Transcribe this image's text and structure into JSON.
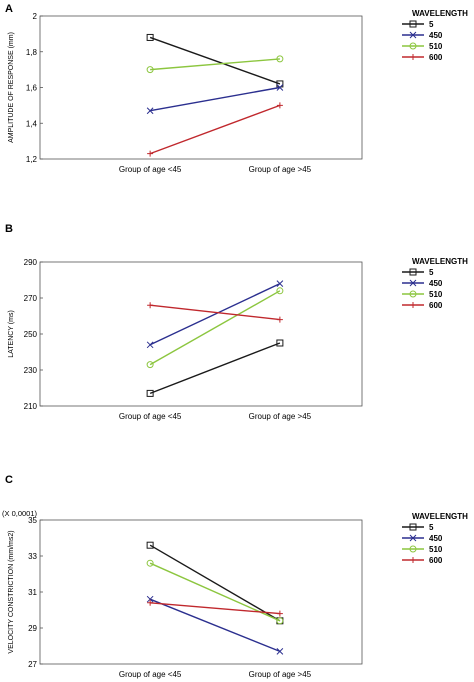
{
  "figure": {
    "panels": [
      "A",
      "B",
      "C"
    ]
  },
  "chart_data": [
    {
      "type": "line",
      "panel_label": "A",
      "xlabel": "",
      "ylabel": "AMPLITUDE OF RESPONSE (mm)",
      "categories": [
        "Group of age <45",
        "Group of age >45"
      ],
      "ylim": [
        1.2,
        2.0
      ],
      "yticks": [
        "1,2",
        "1,4",
        "1,6",
        "1,8",
        "2"
      ],
      "ytick_values": [
        1.2,
        1.4,
        1.6,
        1.8,
        2.0
      ],
      "legend_title": "WAVELENGTH",
      "legend_position": "right",
      "grid": false,
      "series": [
        {
          "name": "5",
          "values": [
            1.88,
            1.62
          ],
          "color": "#1a1a1a",
          "marker": "square"
        },
        {
          "name": "450",
          "values": [
            1.47,
            1.6
          ],
          "color": "#2b2f8f",
          "marker": "x"
        },
        {
          "name": "510",
          "values": [
            1.7,
            1.76
          ],
          "color": "#8cc63f",
          "marker": "circle"
        },
        {
          "name": "600",
          "values": [
            1.23,
            1.5
          ],
          "color": "#c0282d",
          "marker": "plus"
        }
      ]
    },
    {
      "type": "line",
      "panel_label": "B",
      "xlabel": "",
      "ylabel": "LATENCY (ms)",
      "categories": [
        "Group of age <45",
        "Group of age >45"
      ],
      "ylim": [
        210,
        290
      ],
      "yticks": [
        "210",
        "230",
        "250",
        "270",
        "290"
      ],
      "ytick_values": [
        210,
        230,
        250,
        270,
        290
      ],
      "legend_title": "WAVELENGTH",
      "legend_position": "right",
      "grid": false,
      "series": [
        {
          "name": "5",
          "values": [
            217,
            245
          ],
          "color": "#1a1a1a",
          "marker": "square"
        },
        {
          "name": "450",
          "values": [
            244,
            278
          ],
          "color": "#2b2f8f",
          "marker": "x"
        },
        {
          "name": "510",
          "values": [
            233,
            274
          ],
          "color": "#8cc63f",
          "marker": "circle"
        },
        {
          "name": "600",
          "values": [
            266,
            258
          ],
          "color": "#c0282d",
          "marker": "plus"
        }
      ]
    },
    {
      "type": "line",
      "panel_label": "C",
      "xlabel": "",
      "ylabel": "VELOCITY CONSTRICTION (mm/ms2)",
      "scale_note": "(X 0,0001)",
      "categories": [
        "Group of age <45",
        "Group of age >45"
      ],
      "ylim": [
        27,
        35
      ],
      "yticks": [
        "27",
        "29",
        "31",
        "33",
        "35"
      ],
      "ytick_values": [
        27,
        29,
        31,
        33,
        35
      ],
      "legend_title": "WAVELENGTH",
      "legend_position": "right",
      "grid": false,
      "series": [
        {
          "name": "5",
          "values": [
            33.6,
            29.4
          ],
          "color": "#1a1a1a",
          "marker": "square"
        },
        {
          "name": "450",
          "values": [
            30.6,
            27.7
          ],
          "color": "#2b2f8f",
          "marker": "x"
        },
        {
          "name": "510",
          "values": [
            32.6,
            29.4
          ],
          "color": "#8cc63f",
          "marker": "circle"
        },
        {
          "name": "600",
          "values": [
            30.4,
            29.8
          ],
          "color": "#c0282d",
          "marker": "plus"
        }
      ]
    }
  ]
}
